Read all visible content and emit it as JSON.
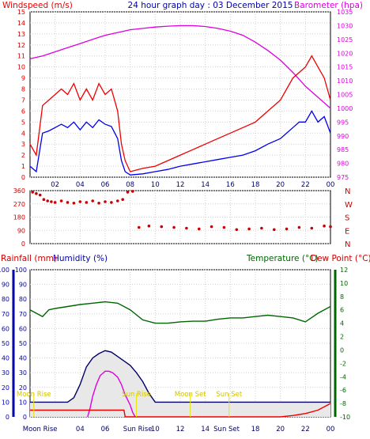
{
  "header": {
    "windspeed_label": "Windspeed (m/s)",
    "title": "24 hour graph day : 03 December 2015",
    "barometer_label": "Barometer (hpa)"
  },
  "colors": {
    "red": "#ee0000",
    "blue": "#0000ee",
    "magenta": "#dd00dd",
    "green": "#006600",
    "navy": "#000066",
    "yellow": "#e6e600",
    "grid": "#d0d0d0",
    "dots": "#cc0000"
  },
  "chart_data": [
    {
      "type": "line",
      "name": "wind-barometer",
      "x_ticks": [
        "02",
        "04",
        "06",
        "08",
        "10",
        "12",
        "14",
        "16",
        "18",
        "20",
        "22",
        "00"
      ],
      "y_left": {
        "label": "Windspeed (m/s)",
        "min": 0,
        "max": 15,
        "ticks": [
          0,
          1,
          2,
          3,
          4,
          5,
          6,
          7,
          8,
          9,
          10,
          11,
          12,
          13,
          14,
          15
        ]
      },
      "y_right": {
        "label": "Barometer (hpa)",
        "min": 975,
        "max": 1035,
        "ticks": [
          975,
          980,
          985,
          990,
          995,
          1000,
          1005,
          1010,
          1015,
          1020,
          1025,
          1030,
          1035
        ]
      },
      "x_range_hours": [
        0,
        24
      ],
      "series": [
        {
          "name": "Barometer",
          "color": "#dd00dd",
          "x": [
            0,
            1,
            2,
            3,
            4,
            5,
            6,
            7,
            8,
            9,
            10,
            11,
            12,
            13,
            14,
            15,
            16,
            17,
            18,
            19,
            20,
            21,
            22,
            23,
            24
          ],
          "y": [
            1018,
            1019,
            1020.5,
            1022,
            1023.5,
            1025,
            1026.5,
            1027.5,
            1028.5,
            1029,
            1029.5,
            1029.8,
            1030,
            1030,
            1029.7,
            1029,
            1028,
            1026.5,
            1024,
            1021,
            1017.5,
            1013,
            1008,
            1004,
            1000
          ]
        },
        {
          "name": "Windspeed gust",
          "color": "#ee0000",
          "x": [
            0,
            0.5,
            1,
            1.5,
            2,
            2.5,
            3,
            3.5,
            4,
            4.5,
            5,
            5.5,
            6,
            6.5,
            7,
            7.3,
            7.6,
            8,
            9,
            10,
            11,
            12,
            13,
            14,
            15,
            16,
            17,
            18,
            19,
            20,
            20.5,
            21,
            21.5,
            22,
            22.5,
            23,
            23.5,
            24
          ],
          "y": [
            3,
            2,
            6.5,
            7,
            7.5,
            8,
            7.5,
            8.5,
            7,
            8,
            7,
            8.5,
            7.5,
            8,
            6,
            3,
            1.5,
            0.5,
            0.8,
            1,
            1.5,
            2,
            2.5,
            3,
            3.5,
            4,
            4.5,
            5,
            6,
            7,
            8,
            9,
            9.5,
            10,
            11,
            10,
            9,
            7
          ]
        },
        {
          "name": "Windspeed average",
          "color": "#0000ee",
          "x": [
            0,
            0.5,
            1,
            1.5,
            2,
            2.5,
            3,
            3.5,
            4,
            4.5,
            5,
            5.5,
            6,
            6.5,
            7,
            7.3,
            7.6,
            8,
            9,
            10,
            11,
            12,
            13,
            14,
            15,
            16,
            17,
            18,
            19,
            20,
            20.5,
            21,
            21.5,
            22,
            22.5,
            23,
            23.5,
            24
          ],
          "y": [
            1,
            0.5,
            4,
            4.2,
            4.5,
            4.8,
            4.5,
            5,
            4.3,
            5,
            4.5,
            5.2,
            4.8,
            4.6,
            3.5,
            1.5,
            0.5,
            0.2,
            0.3,
            0.5,
            0.7,
            1,
            1.2,
            1.4,
            1.6,
            1.8,
            2,
            2.4,
            3,
            3.5,
            4,
            4.5,
            5,
            5,
            6,
            5,
            5.5,
            4
          ]
        }
      ]
    },
    {
      "type": "scatter",
      "name": "wind-direction",
      "y_ticks": [
        360,
        270,
        180,
        90,
        0
      ],
      "y_range": [
        0,
        360
      ],
      "compass_labels": [
        "N",
        "W",
        "S",
        "E",
        "N"
      ],
      "direction": {
        "x": [
          0.2,
          0.5,
          0.8,
          1.1,
          1.4,
          1.7,
          2,
          2.5,
          3,
          3.5,
          4,
          4.5,
          5,
          5.5,
          6,
          6.5,
          7,
          7.4,
          7.8,
          8.2,
          8.7,
          9.5,
          10.5,
          11.5,
          12.5,
          13.5,
          14.5,
          15.5,
          16.5,
          17.5,
          18.5,
          19.5,
          20.5,
          21.5,
          22.5,
          23.5,
          24
        ],
        "y": [
          350,
          340,
          330,
          300,
          290,
          285,
          280,
          290,
          280,
          275,
          285,
          280,
          290,
          275,
          285,
          280,
          290,
          300,
          350,
          355,
          110,
          120,
          115,
          110,
          105,
          100,
          115,
          110,
          95,
          100,
          105,
          95,
          100,
          110,
          105,
          120,
          115
        ]
      }
    },
    {
      "type": "line",
      "name": "rain-humidity-temperature",
      "left_labels": {
        "rainfall": "Rainfall (mm)",
        "humidity": "Humidity (%)"
      },
      "right_labels": {
        "temperature": "Temperature (°C)",
        "dewpoint": "Dew Point (°C)"
      },
      "y_rain_ticks": [
        0,
        10,
        20,
        30,
        40,
        50,
        60,
        70,
        80,
        90,
        100
      ],
      "y_humidity_ticks": [
        0,
        10,
        20,
        30,
        40,
        50,
        60,
        70,
        80,
        90,
        100
      ],
      "y_temp_ticks": [
        12,
        10,
        8,
        6,
        4,
        2,
        0,
        -2,
        -4,
        -6,
        -8,
        -10
      ],
      "temp_range": [
        -10,
        12
      ],
      "series": [
        {
          "name": "Temperature",
          "color": "#006600",
          "x": [
            0,
            0.5,
            1,
            1.5,
            2,
            3,
            4,
            5,
            6,
            7,
            7.5,
            8,
            9,
            10,
            11,
            12,
            13,
            14,
            15,
            16,
            17,
            18,
            19,
            20,
            21,
            22,
            23,
            24
          ],
          "y": [
            6,
            5.5,
            5,
            6,
            6.2,
            6.5,
            6.8,
            7,
            7.2,
            7,
            6.5,
            6,
            4.5,
            4,
            4,
            4.2,
            4.3,
            4.3,
            4.6,
            4.8,
            4.8,
            5,
            5.2,
            5,
            4.8,
            4.2,
            5.5,
            6.5
          ]
        },
        {
          "name": "Humidity",
          "color": "#000066",
          "x": [
            0,
            1,
            2,
            3,
            3.5,
            4,
            4.5,
            5,
            5.5,
            6,
            6.5,
            7,
            7.5,
            8,
            8.5,
            9,
            9.5,
            10,
            11,
            12,
            13,
            14,
            15,
            16,
            17,
            18,
            19,
            20,
            21,
            22,
            23,
            24
          ],
          "y": [
            10,
            10,
            10,
            10,
            13,
            22,
            34,
            40,
            43,
            45,
            44,
            41,
            38,
            35,
            30,
            24,
            16,
            10,
            10,
            10,
            10,
            10,
            10,
            10,
            10,
            10,
            10,
            10,
            10,
            10,
            10,
            10
          ]
        },
        {
          "name": "Rainfall",
          "color": "#dd00dd",
          "x": [
            4.6,
            4.8,
            5,
            5.3,
            5.6,
            6,
            6.3,
            6.6,
            7,
            7.3,
            7.6,
            8,
            8.2,
            8.4
          ],
          "y": [
            0,
            6,
            14,
            22,
            28,
            31,
            31,
            30,
            27,
            22,
            15,
            8,
            3,
            0
          ]
        },
        {
          "name": "Dew Point",
          "color": "#ee0000",
          "x": [
            0,
            1,
            2,
            3,
            4,
            5,
            6,
            7,
            7.5,
            7.6,
            8,
            10,
            12,
            14,
            16,
            18,
            19,
            20,
            21,
            22,
            23,
            24
          ],
          "y": [
            -9,
            -9,
            -9,
            -9,
            -9,
            -9,
            -9,
            -9,
            -9,
            -10,
            -10,
            -10,
            -10,
            -10,
            -10,
            -10,
            -10,
            -10,
            -9.8,
            -9.5,
            -9,
            -8
          ]
        }
      ],
      "astronomy": [
        {
          "label": "Moon Rise",
          "hour": 0.3
        },
        {
          "label": "Sun Rise",
          "hour": 8.5
        },
        {
          "label": "Moon Set",
          "hour": 12.8
        },
        {
          "label": "Sun Set",
          "hour": 15.9
        }
      ],
      "x_labels": [
        {
          "text": "Moon Rise",
          "hour": 0.8
        },
        {
          "text": "04",
          "hour": 4
        },
        {
          "text": "06",
          "hour": 6
        },
        {
          "text": "Sun Rise",
          "hour": 8.6
        },
        {
          "text": "10",
          "hour": 10
        },
        {
          "text": "12",
          "hour": 12
        },
        {
          "text": "14",
          "hour": 14
        },
        {
          "text": "Sun Set",
          "hour": 15.7
        },
        {
          "text": "18",
          "hour": 18
        },
        {
          "text": "20",
          "hour": 20
        },
        {
          "text": "22",
          "hour": 22
        },
        {
          "text": "00",
          "hour": 24
        }
      ]
    }
  ]
}
